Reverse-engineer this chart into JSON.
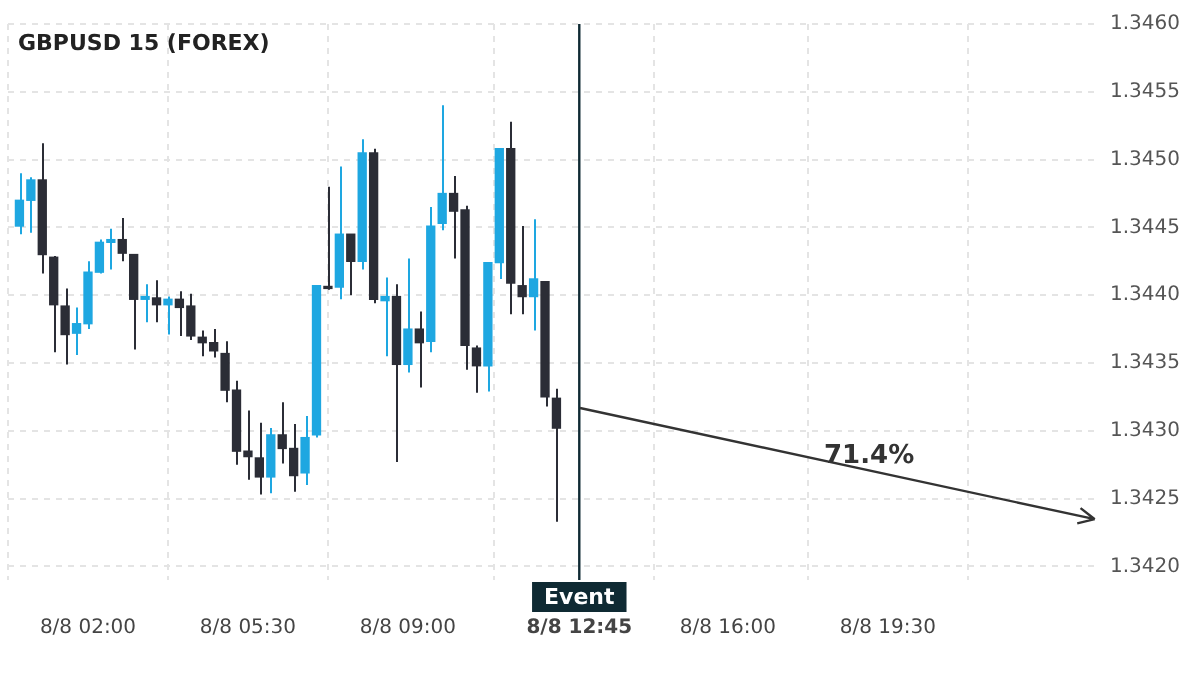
{
  "chart_data": {
    "type": "candlestick",
    "title": "GBPUSD 15 (FOREX)",
    "x": [
      "--08-08T00:30",
      "--08-08T00:45",
      "--08-08T01:00",
      "--08-08T01:15",
      "--08-08T01:30",
      "--08-08T01:45",
      "--08-08T02:00",
      "--08-08T02:15",
      "--08-08T02:30",
      "--08-08T02:45",
      "--08-08T03:00",
      "--08-08T03:15",
      "--08-08T03:30",
      "--08-08T03:45",
      "--08-08T04:00",
      "--08-08T04:15",
      "--08-08T04:30",
      "--08-08T04:45",
      "--08-08T05:00",
      "--08-08T05:15",
      "--08-08T05:30",
      "--08-08T05:45",
      "--08-08T06:00",
      "--08-08T06:15",
      "--08-08T06:30",
      "--08-08T06:45",
      "--08-08T07:00",
      "--08-08T07:15",
      "--08-08T07:30",
      "--08-08T07:45",
      "--08-08T08:00",
      "--08-08T08:15",
      "--08-08T08:30",
      "--08-08T08:45",
      "--08-08T09:00",
      "--08-08T09:15",
      "--08-08T09:30",
      "--08-08T09:45",
      "--08-08T10:00",
      "--08-08T10:15",
      "--08-08T10:30",
      "--08-08T10:45",
      "--08-08T11:00",
      "--08-08T11:15",
      "--08-08T11:30",
      "--08-08T11:45",
      "--08-08T12:00",
      "--08-08T12:15"
    ],
    "ohlc": [
      [
        1.34451,
        1.3449,
        1.34445,
        1.3447
      ],
      [
        1.3447,
        1.34487,
        1.34446,
        1.34485
      ],
      [
        1.34485,
        1.34512,
        1.34416,
        1.3443
      ],
      [
        1.34428,
        1.34429,
        1.34358,
        1.34393
      ],
      [
        1.34392,
        1.34405,
        1.34349,
        1.34371
      ],
      [
        1.34372,
        1.34391,
        1.34356,
        1.34379
      ],
      [
        1.34379,
        1.34425,
        1.34375,
        1.34417
      ],
      [
        1.34417,
        1.34441,
        1.34416,
        1.34439
      ],
      [
        1.34439,
        1.34449,
        1.34419,
        1.34441
      ],
      [
        1.34441,
        1.34457,
        1.34425,
        1.34431
      ],
      [
        1.3443,
        1.3443,
        1.3436,
        1.34397
      ],
      [
        1.34397,
        1.34408,
        1.3438,
        1.34399
      ],
      [
        1.34398,
        1.34411,
        1.3438,
        1.34393
      ],
      [
        1.34393,
        1.34399,
        1.34371,
        1.34397
      ],
      [
        1.34397,
        1.34403,
        1.3437,
        1.34391
      ],
      [
        1.34392,
        1.34401,
        1.34367,
        1.3437
      ],
      [
        1.34369,
        1.34374,
        1.34355,
        1.34365
      ],
      [
        1.34365,
        1.34375,
        1.34354,
        1.34359
      ],
      [
        1.34357,
        1.34366,
        1.34321,
        1.3433
      ],
      [
        1.3433,
        1.34337,
        1.34275,
        1.34285
      ],
      [
        1.34285,
        1.34315,
        1.34264,
        1.34281
      ],
      [
        1.3428,
        1.34306,
        1.34253,
        1.34266
      ],
      [
        1.34266,
        1.34302,
        1.34254,
        1.34297
      ],
      [
        1.34297,
        1.34321,
        1.34276,
        1.34287
      ],
      [
        1.34287,
        1.34305,
        1.34255,
        1.34267
      ],
      [
        1.34269,
        1.34311,
        1.3426,
        1.34295
      ],
      [
        1.34297,
        1.34407,
        1.34295,
        1.34407
      ],
      [
        1.34406,
        1.3448,
        1.34404,
        1.34405
      ],
      [
        1.34406,
        1.34495,
        1.34397,
        1.34445
      ],
      [
        1.34445,
        1.34445,
        1.344,
        1.34425
      ],
      [
        1.34425,
        1.34515,
        1.34419,
        1.34505
      ],
      [
        1.34505,
        1.34508,
        1.34394,
        1.34397
      ],
      [
        1.34396,
        1.34413,
        1.34355,
        1.34399
      ],
      [
        1.34399,
        1.34408,
        1.34277,
        1.34349
      ],
      [
        1.34349,
        1.34427,
        1.34343,
        1.34375
      ],
      [
        1.34375,
        1.34388,
        1.34332,
        1.34365
      ],
      [
        1.34366,
        1.34465,
        1.34358,
        1.34451
      ],
      [
        1.34453,
        1.3454,
        1.34448,
        1.34475
      ],
      [
        1.34475,
        1.34488,
        1.34427,
        1.34462
      ],
      [
        1.34463,
        1.34466,
        1.34345,
        1.34363
      ],
      [
        1.34361,
        1.34363,
        1.34328,
        1.34348
      ],
      [
        1.34348,
        1.34424,
        1.34329,
        1.34424
      ],
      [
        1.34424,
        1.34508,
        1.34412,
        1.34508
      ],
      [
        1.34508,
        1.34528,
        1.34386,
        1.34409
      ],
      [
        1.34407,
        1.34451,
        1.34386,
        1.34399
      ],
      [
        1.34399,
        1.34456,
        1.34374,
        1.34412
      ],
      [
        1.3441,
        1.3441,
        1.34318,
        1.34325
      ],
      [
        1.34324,
        1.34331,
        1.34233,
        1.34302
      ]
    ],
    "colors": [
      "#1ea7e1",
      "#1ea7e1",
      "#2b2d36",
      "#2b2d36",
      "#2b2d36",
      "#1ea7e1",
      "#1ea7e1",
      "#1ea7e1",
      "#1ea7e1",
      "#2b2d36",
      "#2b2d36",
      "#1ea7e1",
      "#2b2d36",
      "#1ea7e1",
      "#2b2d36",
      "#2b2d36",
      "#2b2d36",
      "#2b2d36",
      "#2b2d36",
      "#2b2d36",
      "#2b2d36",
      "#2b2d36",
      "#1ea7e1",
      "#2b2d36",
      "#2b2d36",
      "#1ea7e1",
      "#1ea7e1",
      "#2b2d36",
      "#1ea7e1",
      "#2b2d36",
      "#1ea7e1",
      "#2b2d36",
      "#1ea7e1",
      "#2b2d36",
      "#1ea7e1",
      "#2b2d36",
      "#1ea7e1",
      "#1ea7e1",
      "#2b2d36",
      "#2b2d36",
      "#2b2d36",
      "#1ea7e1",
      "#1ea7e1",
      "#2b2d36",
      "#2b2d36",
      "#1ea7e1",
      "#2b2d36",
      "#2b2d36"
    ],
    "annotations": [
      "71.4%"
    ],
    "ref_lines": [
      {
        "axis": "x",
        "value": "--08-08T12:45",
        "label": "Event",
        "color": "#0f2a33"
      }
    ],
    "xlim": [
      "--08-08T00:15",
      "--08-09T00:06"
    ],
    "xticks": [
      {
        "value": "--08-08T02:00",
        "label": "8/8 02:00"
      },
      {
        "value": "--08-08T05:30",
        "label": "8/8 05:30"
      },
      {
        "value": "--08-08T09:00",
        "label": "8/8 09:00"
      },
      {
        "value": "--08-08T12:45",
        "label": "8/8 12:45"
      },
      {
        "value": "--08-08T16:00",
        "label": "8/8 16:00"
      },
      {
        "value": "--08-08T19:30",
        "label": "8/8 19:30"
      }
    ],
    "ylim": [
      1.3419,
      1.346
    ],
    "yticks": [
      {
        "value": 1.342,
        "label": "1.3420"
      },
      {
        "value": 1.3425,
        "label": "1.3425"
      },
      {
        "value": 1.343,
        "label": "1.3430"
      },
      {
        "value": 1.3435,
        "label": "1.3435"
      },
      {
        "value": 1.344,
        "label": "1.3440"
      },
      {
        "value": 1.3445,
        "label": "1.3445"
      },
      {
        "value": 1.345,
        "label": "1.3450"
      },
      {
        "value": 1.3455,
        "label": "1.3455"
      },
      {
        "value": 1.346,
        "label": "1.3460"
      }
    ],
    "grid": true
  }
}
